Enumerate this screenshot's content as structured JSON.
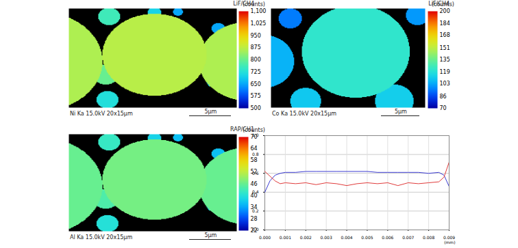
{
  "chart_data": [
    {
      "type": "heatmap",
      "detector": "LiF/CH4",
      "caption": "Ni Ka 15.0kV 20x15µm",
      "scale_bar": {
        "length": 5,
        "label": "5µm"
      },
      "xlim": [
        0,
        20
      ],
      "ylim": [
        0,
        15
      ],
      "background": 450,
      "particles": [
        {
          "x": -3.5,
          "y": 8,
          "r": 7.5,
          "value": 860
        },
        {
          "x": 10.2,
          "y": 7,
          "r": 6.2,
          "value": 870
        },
        {
          "x": 21.5,
          "y": 8,
          "r": 6,
          "value": 860
        },
        {
          "x": 4.8,
          "y": 1.2,
          "r": 1.3,
          "value": 760
        },
        {
          "x": 10.2,
          "y": 0.6,
          "r": 0.8,
          "value": 700
        },
        {
          "x": 13,
          "y": 0.5,
          "r": 0.6,
          "value": 650
        },
        {
          "x": 4.4,
          "y": 10,
          "r": 1.5,
          "value": 800
        },
        {
          "x": 4.6,
          "y": 13.8,
          "r": 1.3,
          "value": 720
        },
        {
          "x": 17.4,
          "y": 11,
          "r": 1,
          "value": 680
        },
        {
          "x": 17.8,
          "y": 3,
          "r": 0.8,
          "value": 650
        }
      ],
      "colorbar": {
        "label": "(counts)",
        "range": [
          500,
          1100
        ],
        "ticks": [
          500,
          575,
          650,
          725,
          800,
          875,
          950,
          1025,
          1100
        ]
      }
    },
    {
      "type": "heatmap",
      "detector": "LiF/CH4",
      "caption": "Co Ka 15.0kV 20x15µm",
      "scale_bar": {
        "length": 5,
        "label": "5µm"
      },
      "xlim": [
        0,
        20
      ],
      "ylim": [
        0,
        15
      ],
      "background": 65,
      "particles": [
        {
          "x": -1,
          "y": 8,
          "r": 4,
          "value": 105
        },
        {
          "x": 11,
          "y": 6.5,
          "r": 7,
          "value": 122
        },
        {
          "x": 4.5,
          "y": 14,
          "r": 2,
          "value": 110
        },
        {
          "x": 16,
          "y": 14,
          "r": 2.5,
          "value": 112
        },
        {
          "x": 19,
          "y": 1,
          "r": 1.5,
          "value": 100
        },
        {
          "x": 2.5,
          "y": 1.5,
          "r": 1.5,
          "value": 95
        }
      ],
      "colorbar": {
        "label": "(counts)",
        "range": [
          70,
          200
        ],
        "ticks": [
          70,
          86,
          103,
          119,
          135,
          151,
          168,
          184,
          200
        ]
      }
    },
    {
      "type": "heatmap",
      "detector": "RAP/CH1",
      "caption": "Al Ka 15.0kV 20x15µm",
      "scale_bar": {
        "length": 5,
        "label": "5µm"
      },
      "xlim": [
        0,
        20
      ],
      "ylim": [
        0,
        15
      ],
      "background": 18,
      "particles": [
        {
          "x": -3.5,
          "y": 8,
          "r": 7.5,
          "value": 46
        },
        {
          "x": 10.2,
          "y": 7,
          "r": 6.2,
          "value": 47
        },
        {
          "x": 21.5,
          "y": 8,
          "r": 6,
          "value": 46
        },
        {
          "x": 4.8,
          "y": 1.2,
          "r": 1.3,
          "value": 42
        },
        {
          "x": 10.2,
          "y": 0.6,
          "r": 0.8,
          "value": 38
        },
        {
          "x": 13,
          "y": 0.5,
          "r": 0.6,
          "value": 36
        },
        {
          "x": 4.4,
          "y": 10,
          "r": 1.5,
          "value": 44
        },
        {
          "x": 4.6,
          "y": 13.8,
          "r": 1.3,
          "value": 40
        },
        {
          "x": 17.4,
          "y": 11,
          "r": 1,
          "value": 38
        },
        {
          "x": 17.8,
          "y": 3,
          "r": 0.8,
          "value": 36
        }
      ],
      "colorbar": {
        "label": "(counts)",
        "range": [
          22,
          70
        ],
        "ticks": [
          22,
          28,
          34,
          40,
          46,
          52,
          58,
          64,
          70
        ]
      }
    },
    {
      "type": "line",
      "xlabel": "(mm)",
      "grid": true,
      "x": [
        0,
        0.00025,
        0.0005,
        0.00075,
        0.001,
        0.0015,
        0.002,
        0.0025,
        0.003,
        0.0035,
        0.004,
        0.0045,
        0.005,
        0.0055,
        0.006,
        0.0065,
        0.007,
        0.0075,
        0.008,
        0.0085,
        0.00875,
        0.009
      ],
      "series": [
        {
          "color": "#3a3ad0",
          "values": [
            0.4,
            0.52,
            0.58,
            0.6,
            0.61,
            0.61,
            0.62,
            0.62,
            0.62,
            0.62,
            0.62,
            0.62,
            0.62,
            0.61,
            0.61,
            0.61,
            0.61,
            0.61,
            0.6,
            0.61,
            0.58,
            0.46
          ]
        },
        {
          "color": "#e03a3a",
          "values": [
            0.62,
            0.57,
            0.52,
            0.49,
            0.5,
            0.49,
            0.5,
            0.48,
            0.5,
            0.49,
            0.47,
            0.49,
            0.5,
            0.49,
            0.5,
            0.47,
            0.5,
            0.49,
            0.5,
            0.51,
            0.56,
            0.72
          ]
        }
      ],
      "xlim": [
        0,
        0.009
      ],
      "xticks": [
        {
          "value": 0,
          "label": "0.000"
        },
        {
          "value": 0.001,
          "label": "0.001"
        },
        {
          "value": 0.002,
          "label": "0.002"
        },
        {
          "value": 0.003,
          "label": "0.003"
        },
        {
          "value": 0.004,
          "label": "0.004"
        },
        {
          "value": 0.005,
          "label": "0.005"
        },
        {
          "value": 0.006,
          "label": "0.006"
        },
        {
          "value": 0.007,
          "label": "0.007"
        },
        {
          "value": 0.008,
          "label": "0.008"
        },
        {
          "value": 0.009,
          "label": "0.009"
        }
      ],
      "ylim": [
        0,
        1
      ],
      "yticks": [
        {
          "value": 0,
          "label": "0.0"
        },
        {
          "value": 0.2,
          "label": "0.2"
        },
        {
          "value": 0.4,
          "label": "0.4"
        },
        {
          "value": 0.6,
          "label": "0.6"
        },
        {
          "value": 0.8,
          "label": "0.8"
        },
        {
          "value": 1,
          "label": "1.0"
        }
      ]
    }
  ]
}
